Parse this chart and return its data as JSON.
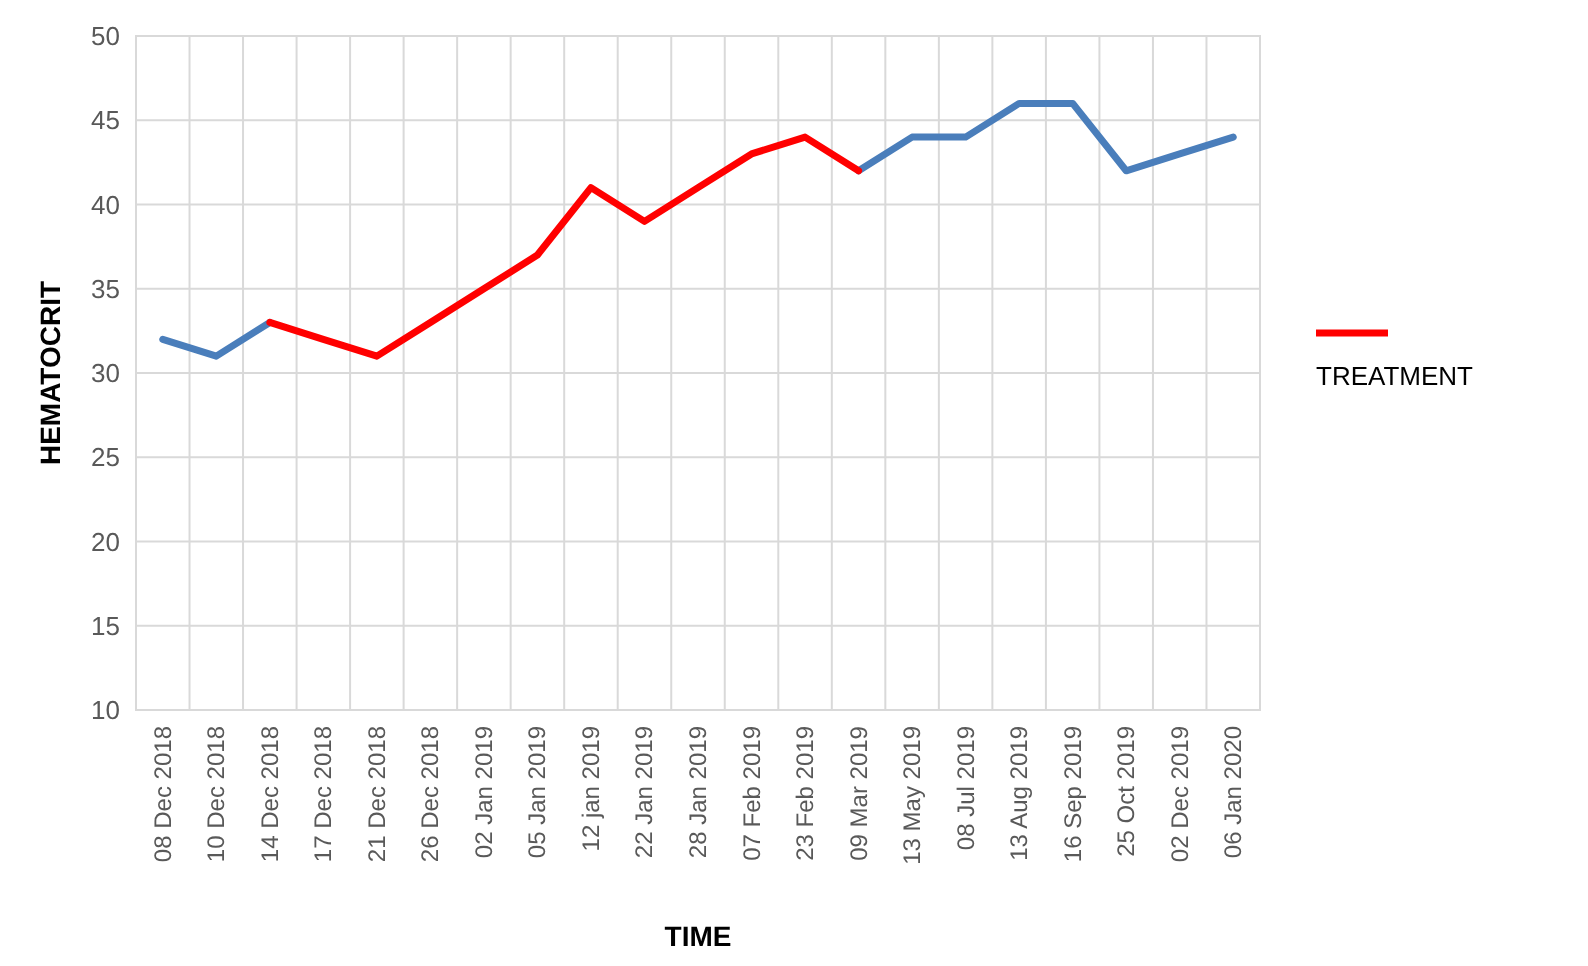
{
  "chart_data": {
    "type": "line",
    "xlabel": "TIME",
    "ylabel": "HEMATOCRIT",
    "categories": [
      "08 Dec 2018",
      "10 Dec 2018",
      "14 Dec 2018",
      "17 Dec 2018",
      "21 Dec 2018",
      "26 Dec 2018",
      "02 Jan 2019",
      "05 Jan 2019",
      "12 jan 2019",
      "22 Jan 2019",
      "28 Jan 2019",
      "07 Feb 2019",
      "23 Feb 2019",
      "09 Mar 2019",
      "13 May 2019",
      "08 Jul 2019",
      "13 Aug 2019",
      "16 Sep 2019",
      "25 Oct 2019",
      "02 Dec 2019",
      "06 Jan 2020"
    ],
    "series": [
      {
        "color": "#4a7ebb",
        "values": [
          32,
          31,
          33,
          null,
          null,
          null,
          null,
          null,
          null,
          null,
          null,
          null,
          null,
          42,
          44,
          44,
          46,
          46,
          42,
          43,
          44
        ]
      },
      {
        "name": "TREATMENT",
        "color": "#ff0000",
        "values": [
          null,
          null,
          33,
          32,
          31,
          33,
          35,
          37,
          41,
          39,
          41,
          43,
          44,
          42,
          null,
          null,
          null,
          null,
          null,
          null,
          null
        ]
      }
    ],
    "ylim": [
      10,
      50
    ],
    "yticks": [
      10,
      15,
      20,
      25,
      30,
      35,
      40,
      45,
      50
    ],
    "grid": true,
    "legend": "right",
    "marker": "none",
    "line_style": "solid"
  }
}
